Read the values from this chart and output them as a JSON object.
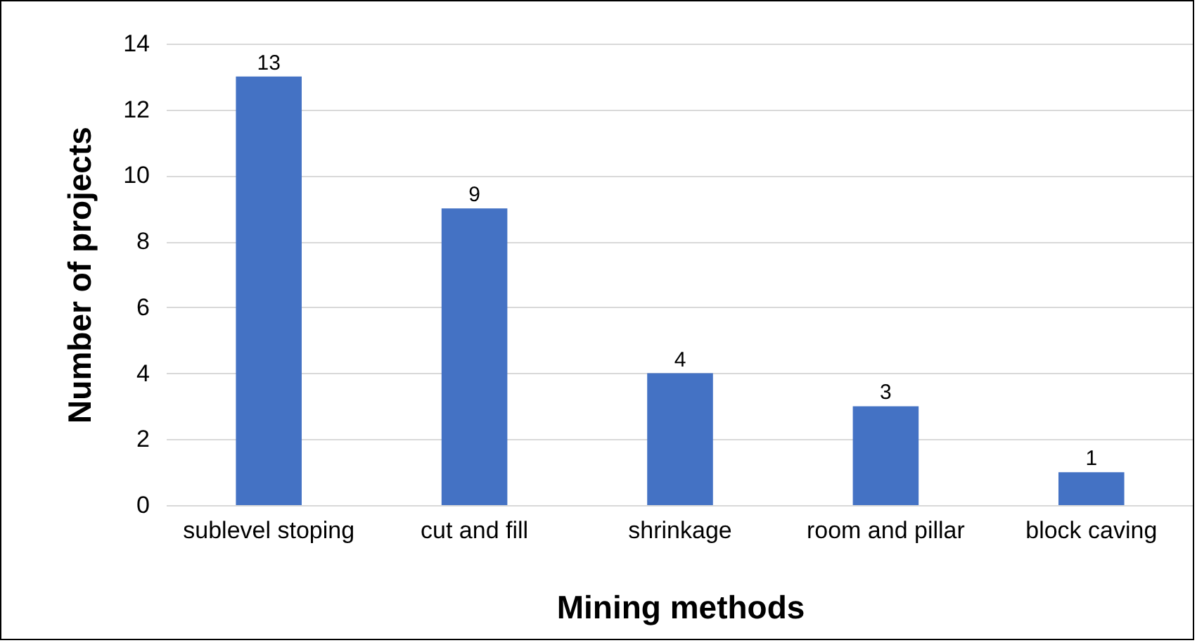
{
  "chart_data": {
    "type": "bar",
    "xlabel": "Mining methods",
    "ylabel": "Number of projects",
    "categories": [
      "sublevel stoping",
      "cut and fill",
      "shrinkage",
      "room and pillar",
      "block caving"
    ],
    "values": [
      13,
      9,
      4,
      3,
      1
    ],
    "color": "#4472c4",
    "ylim": [
      0,
      14
    ],
    "yticks": [
      0,
      2,
      4,
      6,
      8,
      10,
      12,
      14
    ],
    "grid": "y",
    "data_labels": true
  }
}
